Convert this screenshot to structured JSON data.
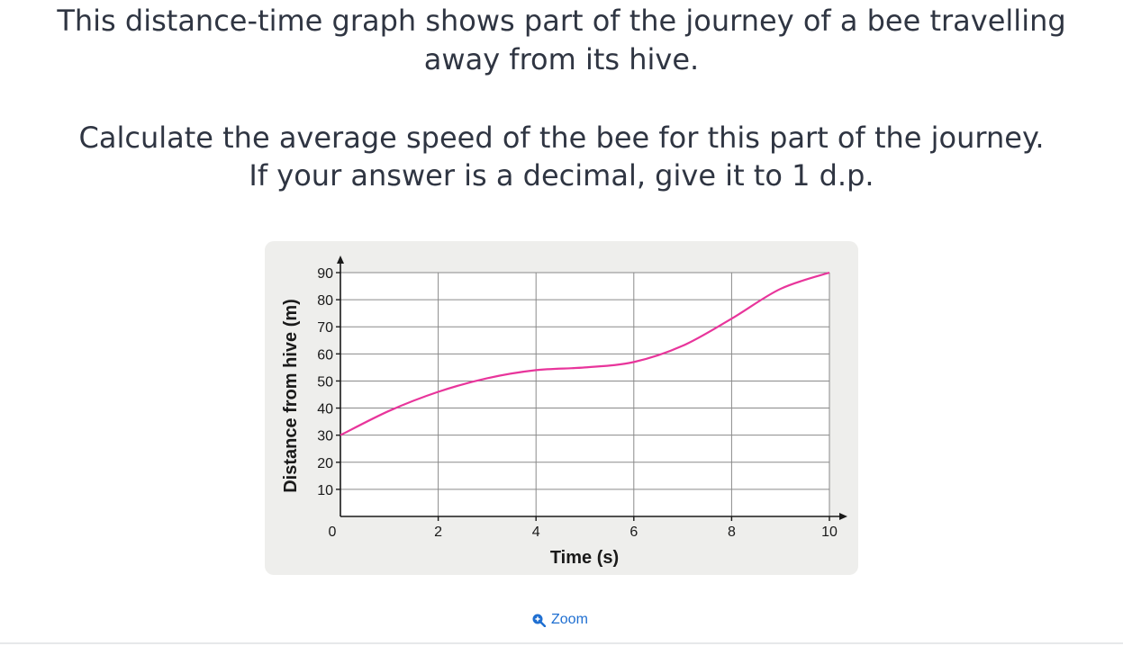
{
  "question": {
    "line1": "This distance-time graph shows part of the journey of a bee travelling",
    "line2": "away from its hive.",
    "line3": "Calculate the average speed of the bee for this part of the journey.",
    "line4": "If your answer is a decimal, give it to 1 d.p."
  },
  "zoom": {
    "label": "Zoom",
    "icon": "zoom-in-icon"
  },
  "colors": {
    "curve": "#e8359b",
    "accent": "#1f6fd1",
    "text": "#2f3542",
    "panel": "#eeeeec"
  },
  "chart_data": {
    "type": "line",
    "xlabel": "Time (s)",
    "ylabel": "Distance from hive (m)",
    "xlim": [
      0,
      10
    ],
    "ylim": [
      0,
      90
    ],
    "x_ticks": [
      "0",
      "2",
      "4",
      "6",
      "8",
      "10"
    ],
    "y_ticks": [
      "10",
      "20",
      "30",
      "40",
      "50",
      "60",
      "70",
      "80",
      "90"
    ],
    "grid": true,
    "series": [
      {
        "x": [
          0,
          1,
          2,
          3,
          4,
          5,
          6,
          7,
          8,
          9,
          10
        ],
        "y": [
          30,
          39,
          46,
          51,
          54,
          55,
          57,
          63,
          73,
          84,
          90
        ]
      }
    ]
  }
}
